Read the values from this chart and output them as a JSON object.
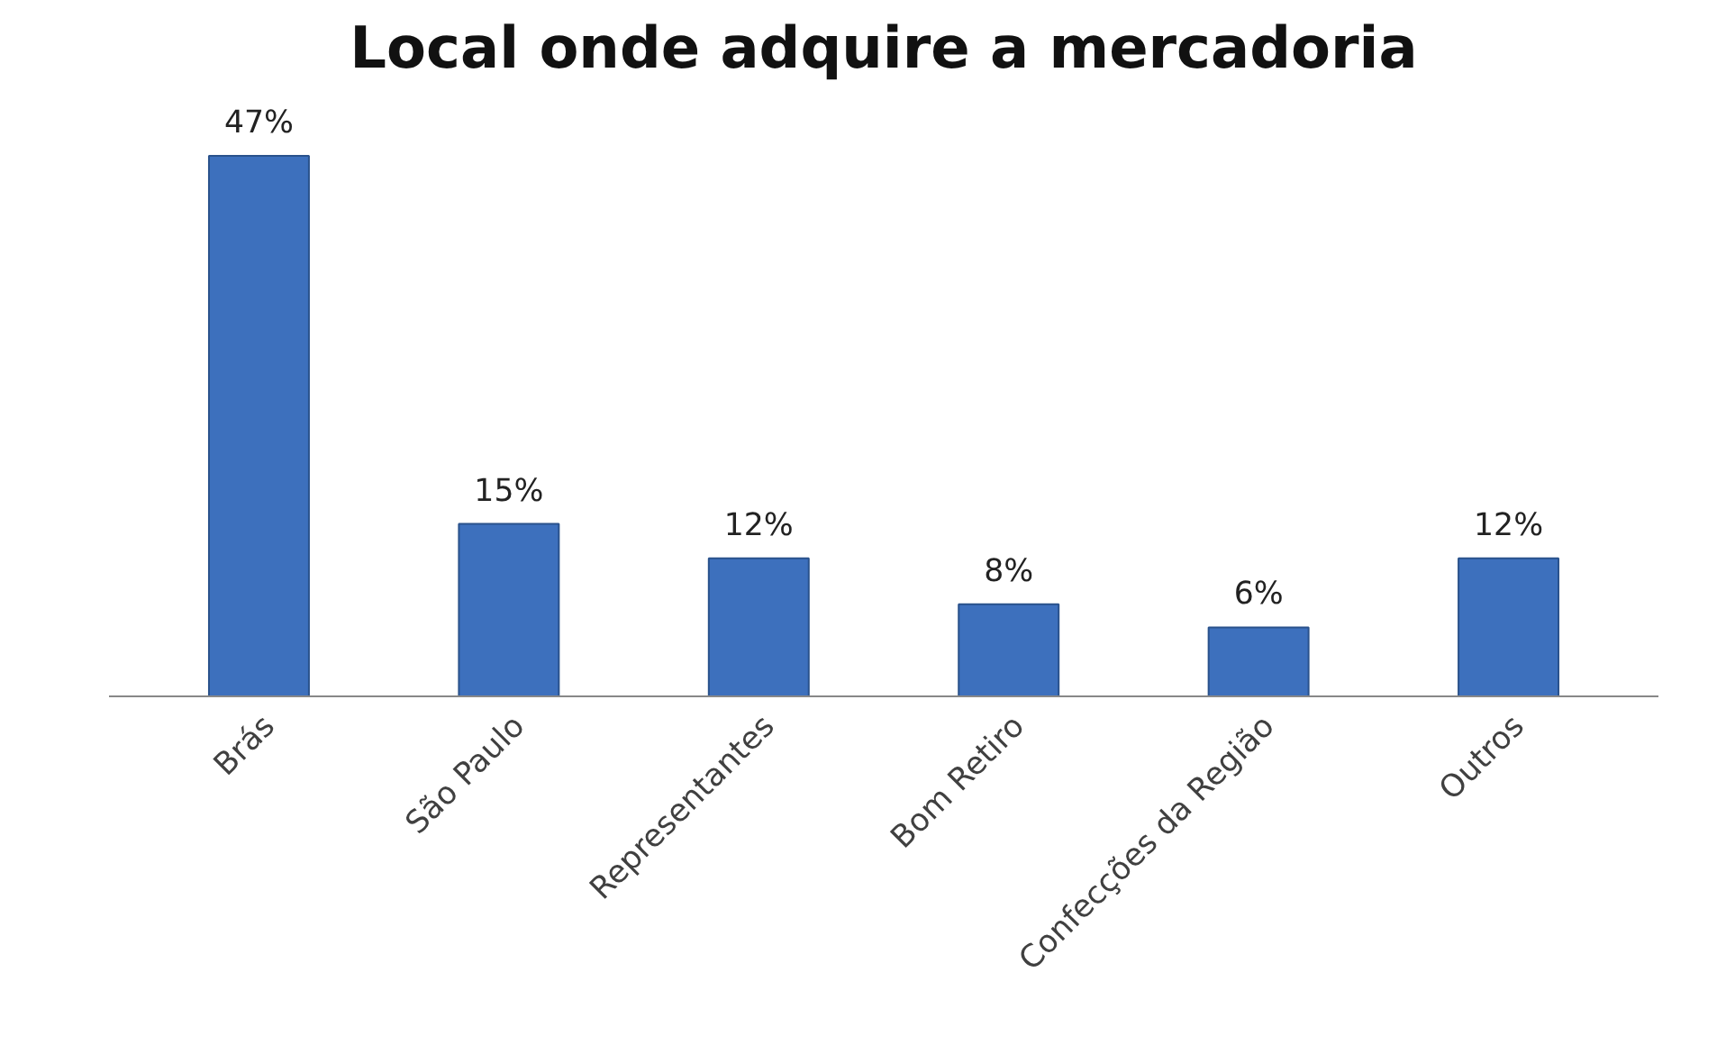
{
  "chart_data": {
    "type": "bar",
    "title": "Local onde adquire a mercadoria",
    "categories": [
      "Brás",
      "São Paulo",
      "Representantes",
      "Bom Retiro",
      "Confecções da Região",
      "Outros"
    ],
    "values": [
      47,
      15,
      12,
      8,
      6,
      12
    ],
    "value_labels": [
      "47%",
      "15%",
      "12%",
      "8%",
      "6%",
      "12%"
    ],
    "color": "#3d70bd",
    "grid": false
  }
}
